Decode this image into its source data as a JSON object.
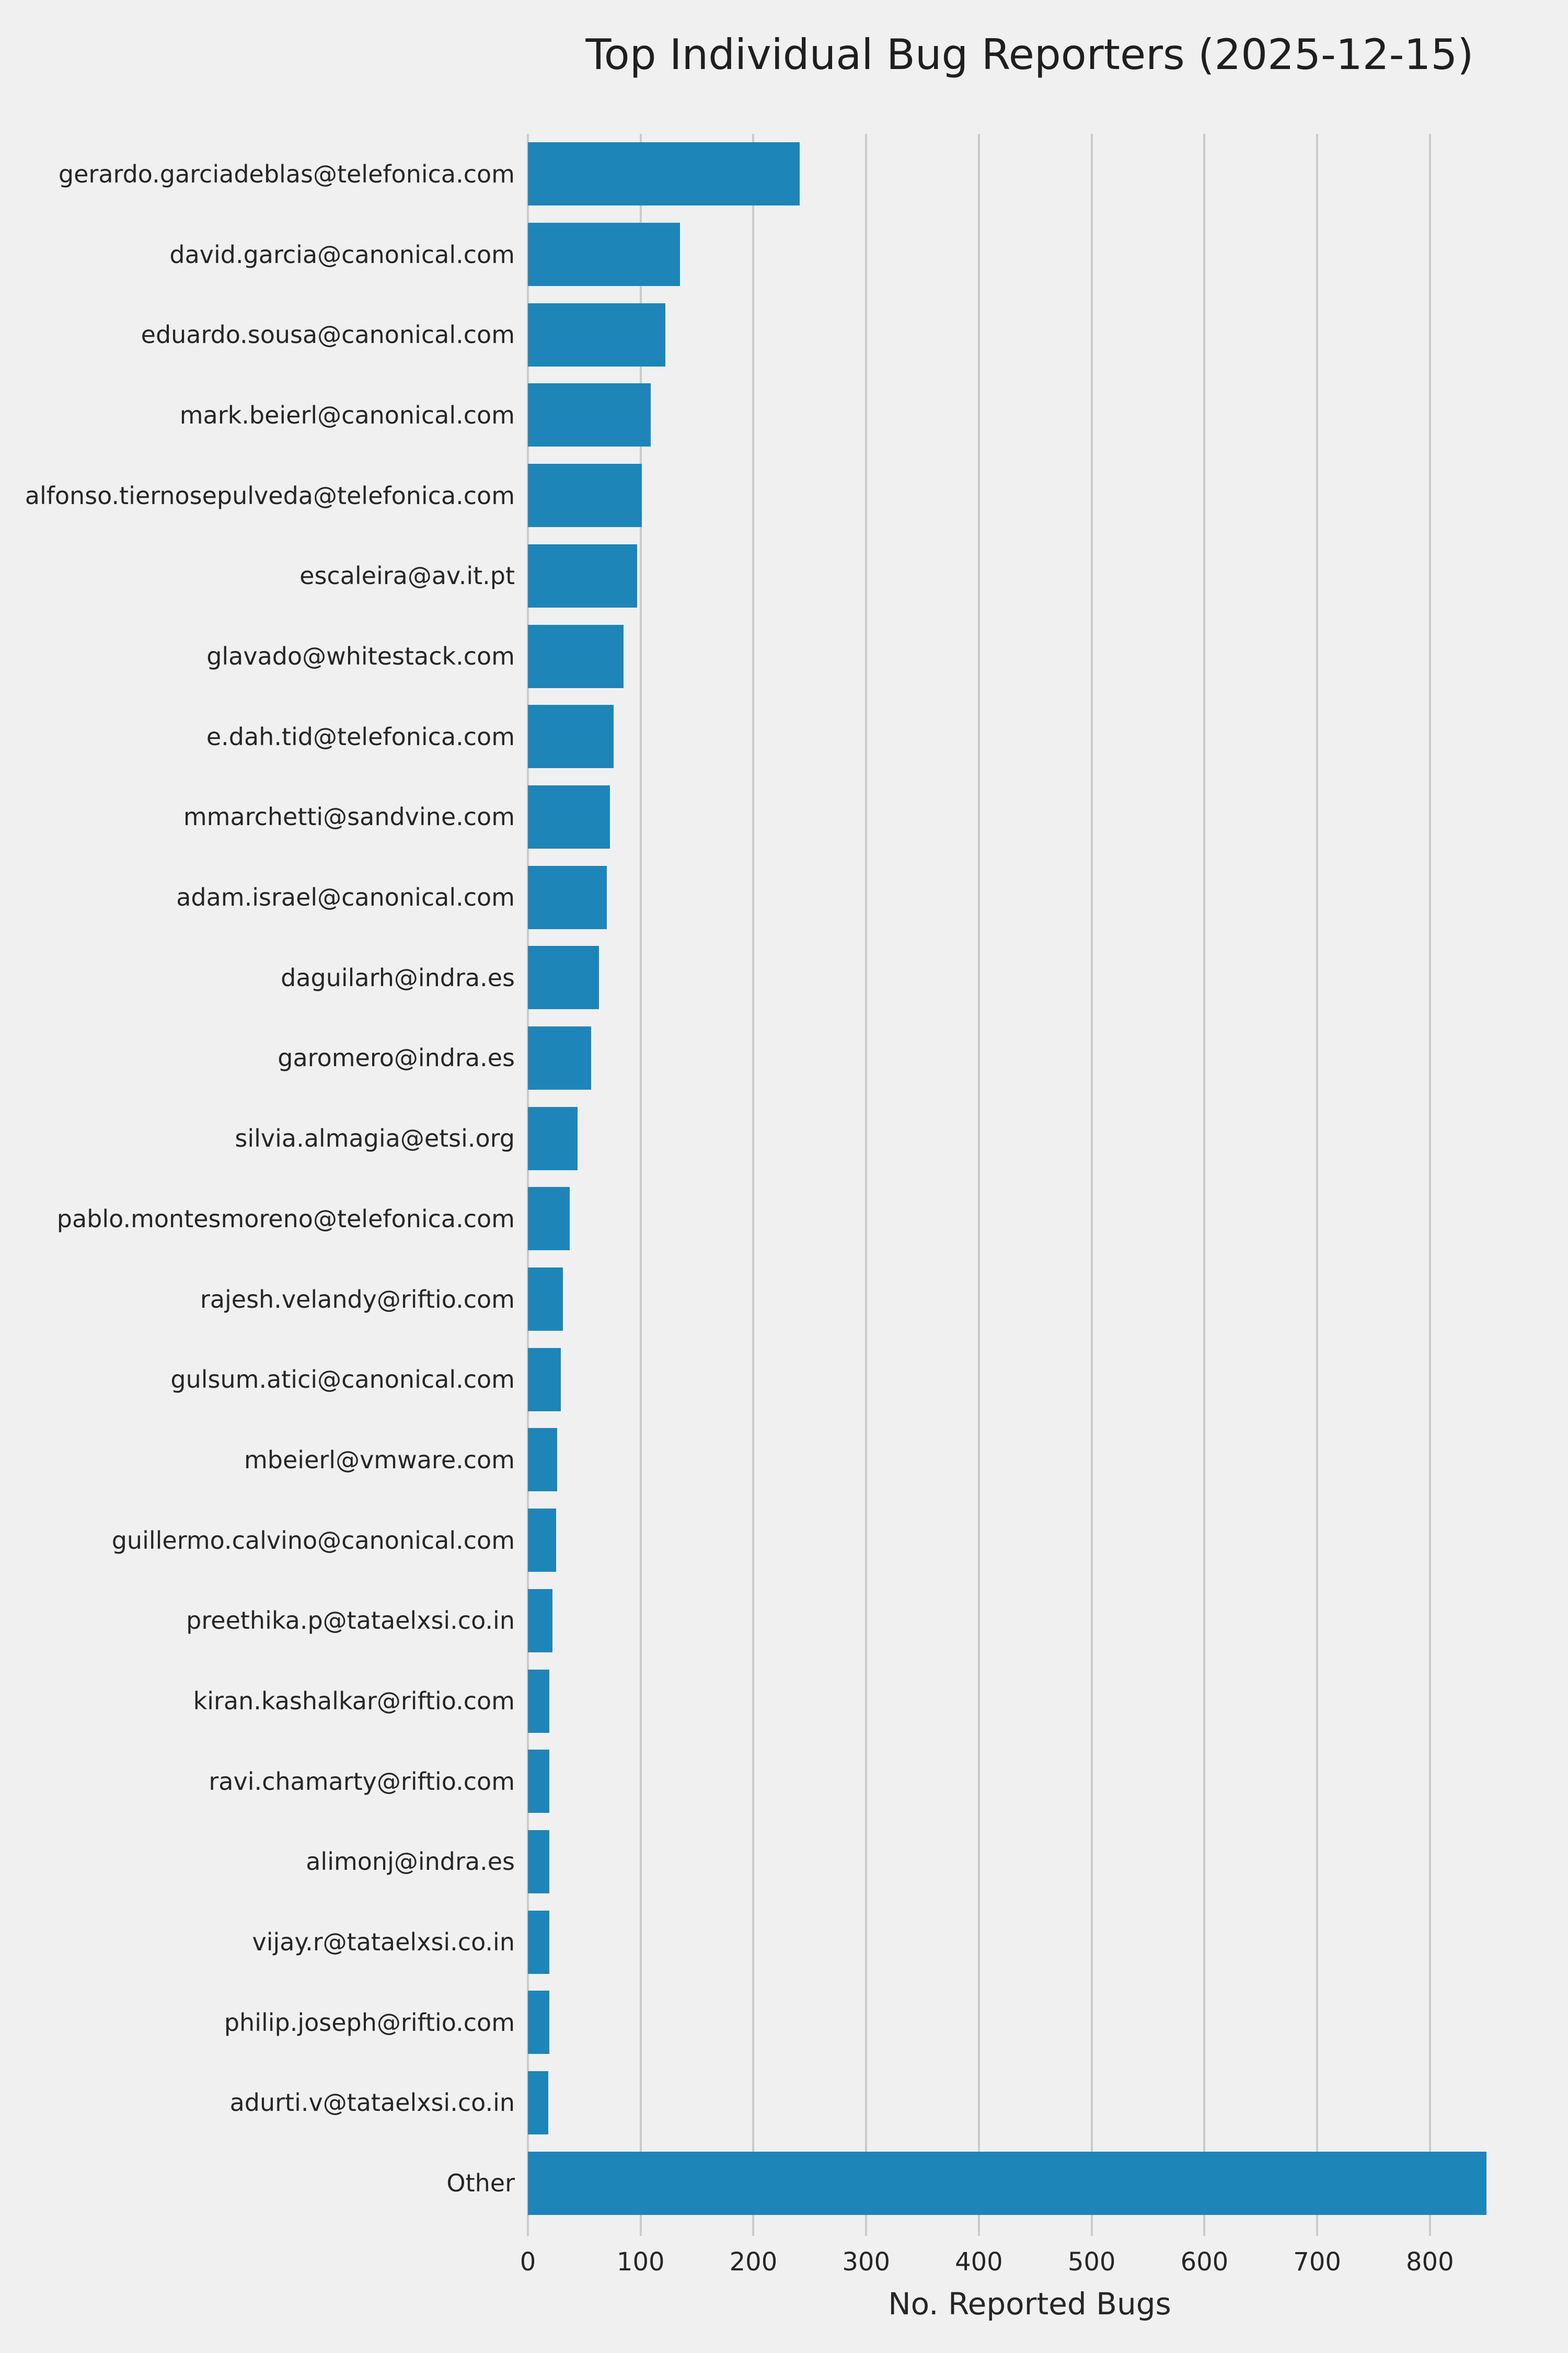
{
  "title": "Top Individual Bug Reporters (2025-12-15)",
  "xlabel": "No. Reported Bugs",
  "colors": {
    "background": "#F0F0F0",
    "bar": "#1E85B8",
    "grid": "#CBCBCB",
    "text": "#262626"
  },
  "chart_data": {
    "type": "bar",
    "orientation": "horizontal",
    "title": "Top Individual Bug Reporters (2025-12-15)",
    "xlabel": "No. Reported Bugs",
    "ylabel": "",
    "xlim": [
      0,
      890
    ],
    "xticks": [
      0,
      100,
      200,
      300,
      400,
      500,
      600,
      700,
      800
    ],
    "grid": true,
    "legend": false,
    "categories": [
      "gerardo.garciadeblas@telefonica.com",
      "david.garcia@canonical.com",
      "eduardo.sousa@canonical.com",
      "mark.beierl@canonical.com",
      "alfonso.tiernosepulveda@telefonica.com",
      "escaleira@av.it.pt",
      "glavado@whitestack.com",
      "e.dah.tid@telefonica.com",
      "mmarchetti@sandvine.com",
      "adam.israel@canonical.com",
      "daguilarh@indra.es",
      "garomero@indra.es",
      "silvia.almagia@etsi.org",
      "pablo.montesmoreno@telefonica.com",
      "rajesh.velandy@riftio.com",
      "gulsum.atici@canonical.com",
      "mbeierl@vmware.com",
      "guillermo.calvino@canonical.com",
      "preethika.p@tataelxsi.co.in",
      "kiran.kashalkar@riftio.com",
      "ravi.chamarty@riftio.com",
      "alimonj@indra.es",
      "vijay.r@tataelxsi.co.in",
      "philip.joseph@riftio.com",
      "adurti.v@tataelxsi.co.in",
      "Other"
    ],
    "values": [
      241,
      135,
      122,
      109,
      101,
      97,
      85,
      76,
      73,
      70,
      63,
      56,
      44,
      37,
      31,
      29,
      26,
      25,
      22,
      19,
      19,
      19,
      19,
      19,
      18,
      850
    ]
  }
}
